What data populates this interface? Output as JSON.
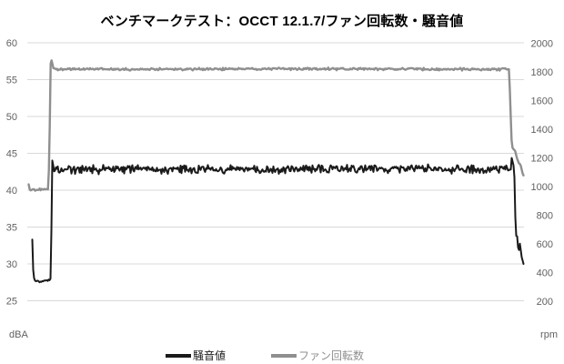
{
  "window": {
    "title": "ベンチマークテスト：OCCT 12.1.7/ファン回転数・騒音値"
  },
  "chart_data": {
    "type": "line",
    "title": "ベンチマークテスト：OCCT 12.1.7/ファン回転数・騒音値",
    "grid": "horizontal",
    "grid_color": "#d9d9d9",
    "background_color": "#ffffff",
    "x_axis": {
      "tick_labels": []
    },
    "left_axis": {
      "unit": "dBA",
      "min": 25,
      "max": 60,
      "ticks": [
        60,
        55,
        50,
        45,
        40,
        35,
        30,
        25
      ]
    },
    "right_axis": {
      "unit": "rpm",
      "min": 200,
      "max": 2000,
      "ticks": [
        2000,
        1800,
        1600,
        1400,
        1200,
        1000,
        800,
        600,
        400,
        200
      ]
    },
    "legend": {
      "position": "bottom",
      "items": [
        {
          "label": "騒音値",
          "color": "#1a1a1a"
        },
        {
          "label": "ファン回転数",
          "color": "#8f8f8f"
        }
      ]
    },
    "series": [
      {
        "id": "noise-level",
        "name": "騒音値",
        "axis": "left",
        "unit": "dBA",
        "color": "#1a1a1a",
        "stroke_width": 2,
        "summary": {
          "idle_dBA": 27.6,
          "load_dBA": 42.8,
          "start_spike_dBA": 33.3,
          "rise_peak_dBA": 45.0,
          "end_dBA": 30.0
        },
        "keypoints": [
          [
            0.00735,
            33.3
          ],
          [
            0.009,
            29.3
          ],
          [
            0.0115,
            27.8
          ],
          [
            0.02,
            27.55
          ],
          [
            0.032,
            27.7
          ],
          [
            0.0435,
            27.8
          ],
          [
            0.045,
            28.3
          ],
          [
            0.0465,
            38.0
          ],
          [
            0.048,
            45.0
          ],
          [
            0.0505,
            42.5
          ],
          [
            0.056,
            42.8
          ],
          [
            0.25,
            42.85
          ],
          [
            0.5,
            42.8
          ],
          [
            0.75,
            42.9
          ],
          [
            0.9743,
            42.8
          ],
          [
            0.976,
            44.4
          ],
          [
            0.979,
            43.6
          ],
          [
            0.981,
            43.0
          ],
          [
            0.9825,
            40.0
          ],
          [
            0.984,
            34.2
          ],
          [
            0.986,
            33.6
          ],
          [
            0.9875,
            33.8
          ],
          [
            0.989,
            32.2
          ],
          [
            0.9905,
            31.6
          ],
          [
            0.992,
            33.0
          ],
          [
            0.9935,
            32.4
          ],
          [
            0.996,
            31.0
          ],
          [
            1.0,
            30.0
          ]
        ],
        "noise_windows": [
          [
            0.011,
            0.0415,
            0.18
          ],
          [
            0.054,
            0.972,
            0.7
          ]
        ]
      },
      {
        "id": "fan-speed",
        "name": "ファン回転数",
        "axis": "right",
        "unit": "rpm",
        "color": "#8f8f8f",
        "stroke_width": 2.4,
        "summary": {
          "idle_rpm": 975,
          "load_rpm": 1815,
          "rise_peak_rpm": 1878,
          "end_rpm": 1080
        },
        "keypoints": [
          [
            0.0,
            1012
          ],
          [
            0.0018,
            982
          ],
          [
            0.004,
            975
          ],
          [
            0.015,
            974
          ],
          [
            0.028,
            977
          ],
          [
            0.04,
            982
          ],
          [
            0.0425,
            1400
          ],
          [
            0.0445,
            1868
          ],
          [
            0.0465,
            1878
          ],
          [
            0.05,
            1822
          ],
          [
            0.06,
            1815
          ],
          [
            0.5,
            1818
          ],
          [
            0.9706,
            1815
          ],
          [
            0.973,
            1620
          ],
          [
            0.9755,
            1330
          ],
          [
            0.978,
            1262
          ],
          [
            0.9825,
            1250
          ],
          [
            0.9845,
            1232
          ],
          [
            0.986,
            1200
          ],
          [
            0.988,
            1185
          ],
          [
            0.99,
            1160
          ],
          [
            0.9925,
            1155
          ],
          [
            0.994,
            1148
          ],
          [
            0.996,
            1120
          ],
          [
            0.998,
            1090
          ],
          [
            1.0,
            1075
          ]
        ],
        "noise_windows": [
          [
            0.003,
            0.04,
            9
          ],
          [
            0.053,
            0.968,
            10
          ]
        ]
      }
    ]
  }
}
